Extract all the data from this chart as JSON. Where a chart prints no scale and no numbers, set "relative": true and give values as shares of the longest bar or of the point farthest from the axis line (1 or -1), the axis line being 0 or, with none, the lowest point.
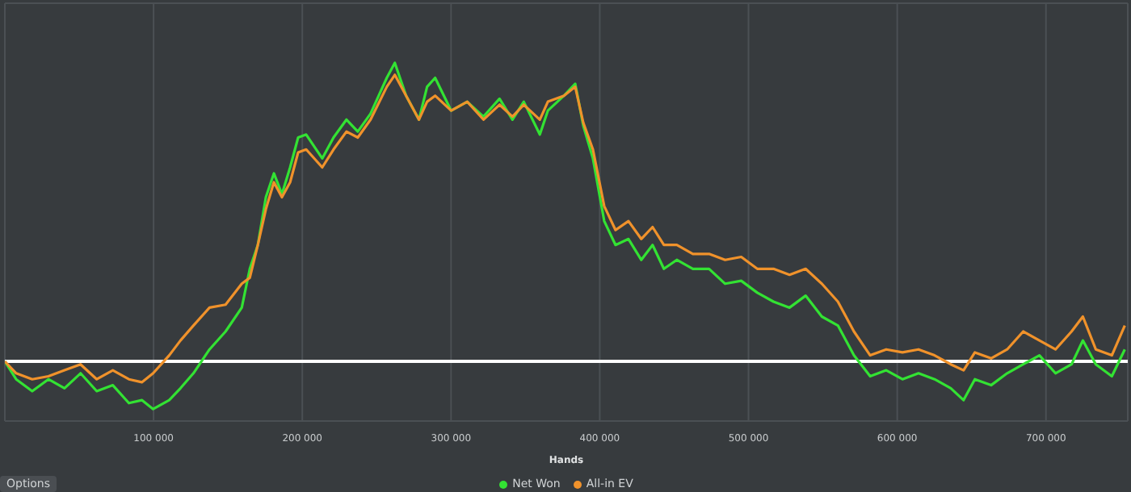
{
  "chart_data": {
    "type": "line",
    "xlabel": "Hands",
    "relative": true,
    "grid": true,
    "legend": "bottom",
    "marker": "none",
    "line_style": "solid",
    "x": [
      0,
      7600,
      18400,
      29300,
      40100,
      50900,
      61800,
      72600,
      83400,
      92100,
      99700,
      110500,
      118100,
      126800,
      137600,
      148400,
      159300,
      164700,
      170100,
      175500,
      180900,
      186300,
      191800,
      197200,
      202600,
      213400,
      221000,
      229700,
      237300,
      245900,
      256800,
      262200,
      269800,
      278400,
      283900,
      289300,
      300100,
      310900,
      321800,
      332600,
      341300,
      348900,
      359700,
      365100,
      375900,
      383500,
      388900,
      395400,
      403000,
      410600,
      419300,
      427900,
      435500,
      443100,
      451800,
      462600,
      473500,
      484300,
      495100,
      505900,
      516800,
      527600,
      538400,
      549300,
      560100,
      570900,
      581800,
      592600,
      603500,
      614300,
      625100,
      636000,
      644600,
      652200,
      663100,
      673900,
      684700,
      695600,
      706400,
      717200,
      724800,
      733500,
      744300,
      753000
    ],
    "xlim": [
      0,
      755000
    ],
    "xticks": [
      {
        "value": 100000,
        "label": "100 000"
      },
      {
        "value": 200000,
        "label": "200 000"
      },
      {
        "value": 300000,
        "label": "300 000"
      },
      {
        "value": 400000,
        "label": "400 000"
      },
      {
        "value": 500000,
        "label": "500 000"
      },
      {
        "value": 600000,
        "label": "600 000"
      },
      {
        "value": 700000,
        "label": "700 000"
      }
    ],
    "series": [
      {
        "name": "Net Won",
        "color": "#33e233",
        "values": [
          0,
          -0.06,
          -0.1,
          -0.06,
          -0.09,
          -0.04,
          -0.1,
          -0.08,
          -0.14,
          -0.13,
          -0.16,
          -0.13,
          -0.09,
          -0.04,
          0.04,
          0.1,
          0.18,
          0.31,
          0.39,
          0.55,
          0.63,
          0.56,
          0.65,
          0.75,
          0.76,
          0.68,
          0.75,
          0.81,
          0.77,
          0.83,
          0.95,
          1,
          0.89,
          0.81,
          0.92,
          0.95,
          0.84,
          0.87,
          0.82,
          0.88,
          0.81,
          0.87,
          0.76,
          0.84,
          0.89,
          0.93,
          0.79,
          0.68,
          0.47,
          0.39,
          0.41,
          0.34,
          0.39,
          0.31,
          0.34,
          0.31,
          0.31,
          0.26,
          0.27,
          0.23,
          0.2,
          0.18,
          0.22,
          0.15,
          0.12,
          0.02,
          -0.05,
          -0.03,
          -0.06,
          -0.04,
          -0.06,
          -0.09,
          -0.13,
          -0.06,
          -0.08,
          -0.04,
          -0.01,
          0.02,
          -0.04,
          -0.01,
          0.07,
          -0.01,
          -0.05,
          0.04
        ]
      },
      {
        "name": "All-in EV",
        "color": "#f0922b",
        "values": [
          0,
          -0.04,
          -0.06,
          -0.05,
          -0.03,
          -0.01,
          -0.06,
          -0.03,
          -0.06,
          -0.07,
          -0.04,
          0.02,
          0.07,
          0.12,
          0.18,
          0.19,
          0.26,
          0.28,
          0.39,
          0.51,
          0.6,
          0.55,
          0.6,
          0.7,
          0.71,
          0.65,
          0.71,
          0.77,
          0.75,
          0.81,
          0.92,
          0.96,
          0.89,
          0.81,
          0.87,
          0.89,
          0.84,
          0.87,
          0.81,
          0.86,
          0.82,
          0.86,
          0.81,
          0.87,
          0.89,
          0.92,
          0.8,
          0.71,
          0.52,
          0.44,
          0.47,
          0.41,
          0.45,
          0.39,
          0.39,
          0.36,
          0.36,
          0.34,
          0.35,
          0.31,
          0.31,
          0.29,
          0.31,
          0.26,
          0.2,
          0.1,
          0.02,
          0.04,
          0.03,
          0.04,
          0.02,
          -0.01,
          -0.03,
          0.03,
          0.01,
          0.04,
          0.1,
          0.07,
          0.04,
          0.1,
          0.15,
          0.04,
          0.02,
          0.12
        ]
      }
    ],
    "ref_lines": [
      {
        "axis": "y",
        "value": 0,
        "color": "#ffffff"
      }
    ],
    "annotations": [
      "Options"
    ]
  }
}
